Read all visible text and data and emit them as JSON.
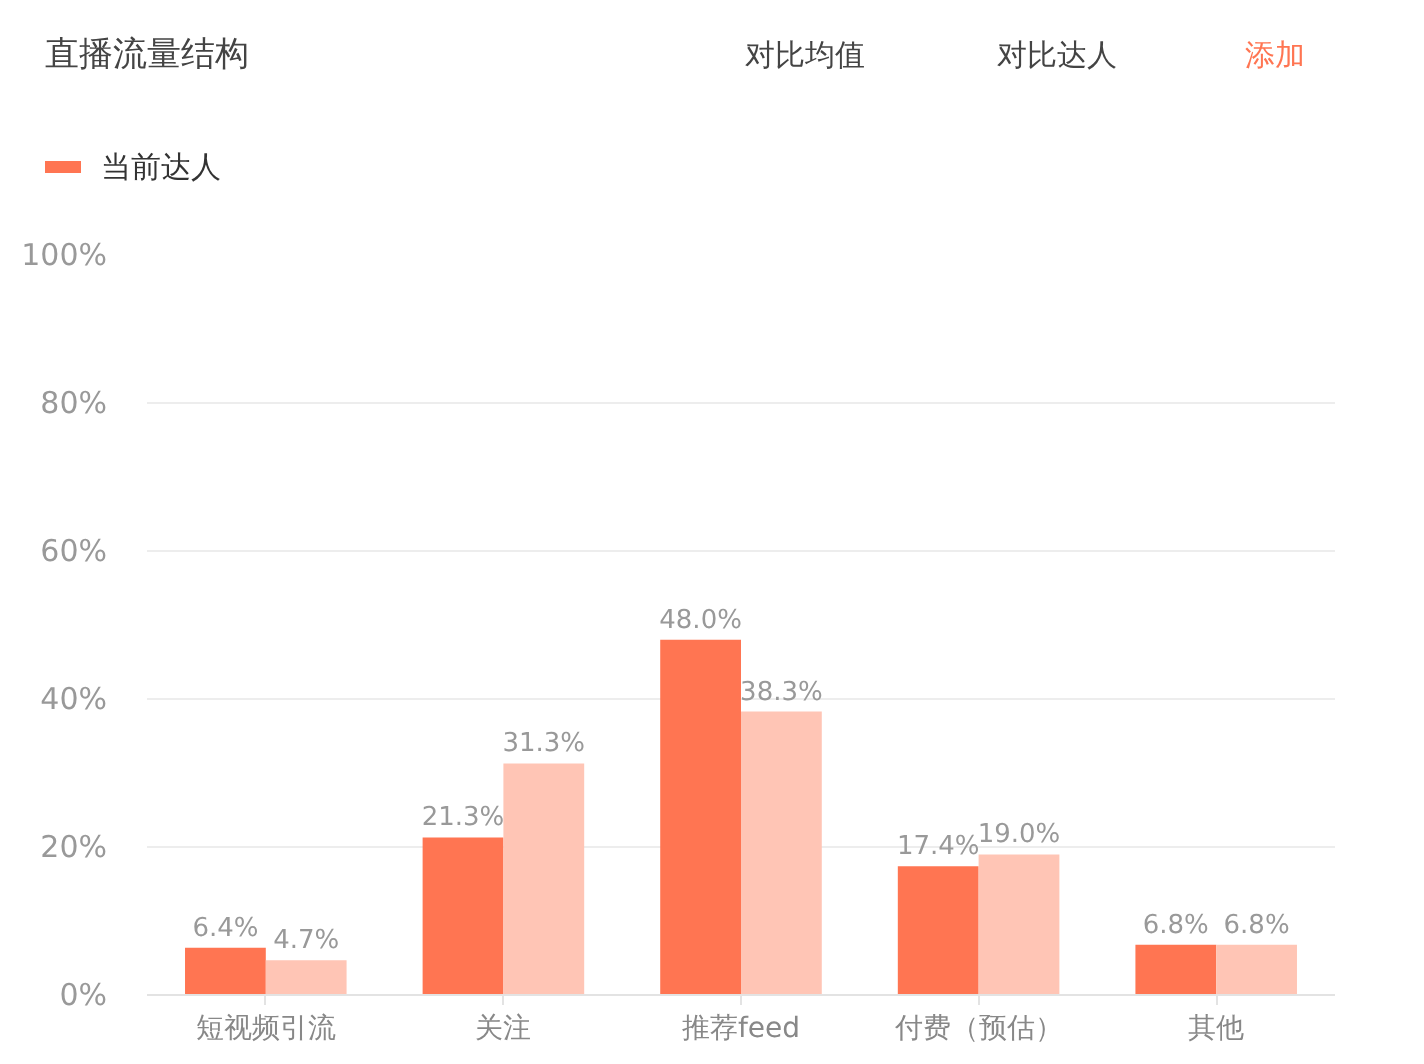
{
  "chart_data": {
    "type": "bar",
    "title": "直播流量结构",
    "categories": [
      "短视频引流",
      "关注",
      "推荐feed",
      "付费（预估）",
      "其他"
    ],
    "series": [
      {
        "name": "当前达人",
        "color": "#ff7552",
        "values": [
          6.4,
          21.3,
          48.0,
          17.4,
          6.8
        ],
        "value_labels": [
          "6.4%",
          "21.3%",
          "48.0%",
          "17.4%",
          "6.8%"
        ]
      },
      {
        "color": "#ffc5b5",
        "values": [
          4.7,
          31.3,
          38.3,
          19.0,
          6.8
        ],
        "value_labels": [
          "4.7%",
          "31.3%",
          "38.3%",
          "19.0%",
          "6.8%"
        ]
      }
    ],
    "ylim": [
      0,
      100
    ],
    "yticks": [
      {
        "value": 0,
        "label": "0%"
      },
      {
        "value": 20,
        "label": "20%"
      },
      {
        "value": 40,
        "label": "40%"
      },
      {
        "value": 60,
        "label": "60%"
      },
      {
        "value": 80,
        "label": "80%"
      },
      {
        "value": 100,
        "label": "100%"
      }
    ],
    "grid": "y",
    "legend": "top left",
    "annotations": [
      "对比均值",
      "对比达人",
      "添加"
    ]
  }
}
